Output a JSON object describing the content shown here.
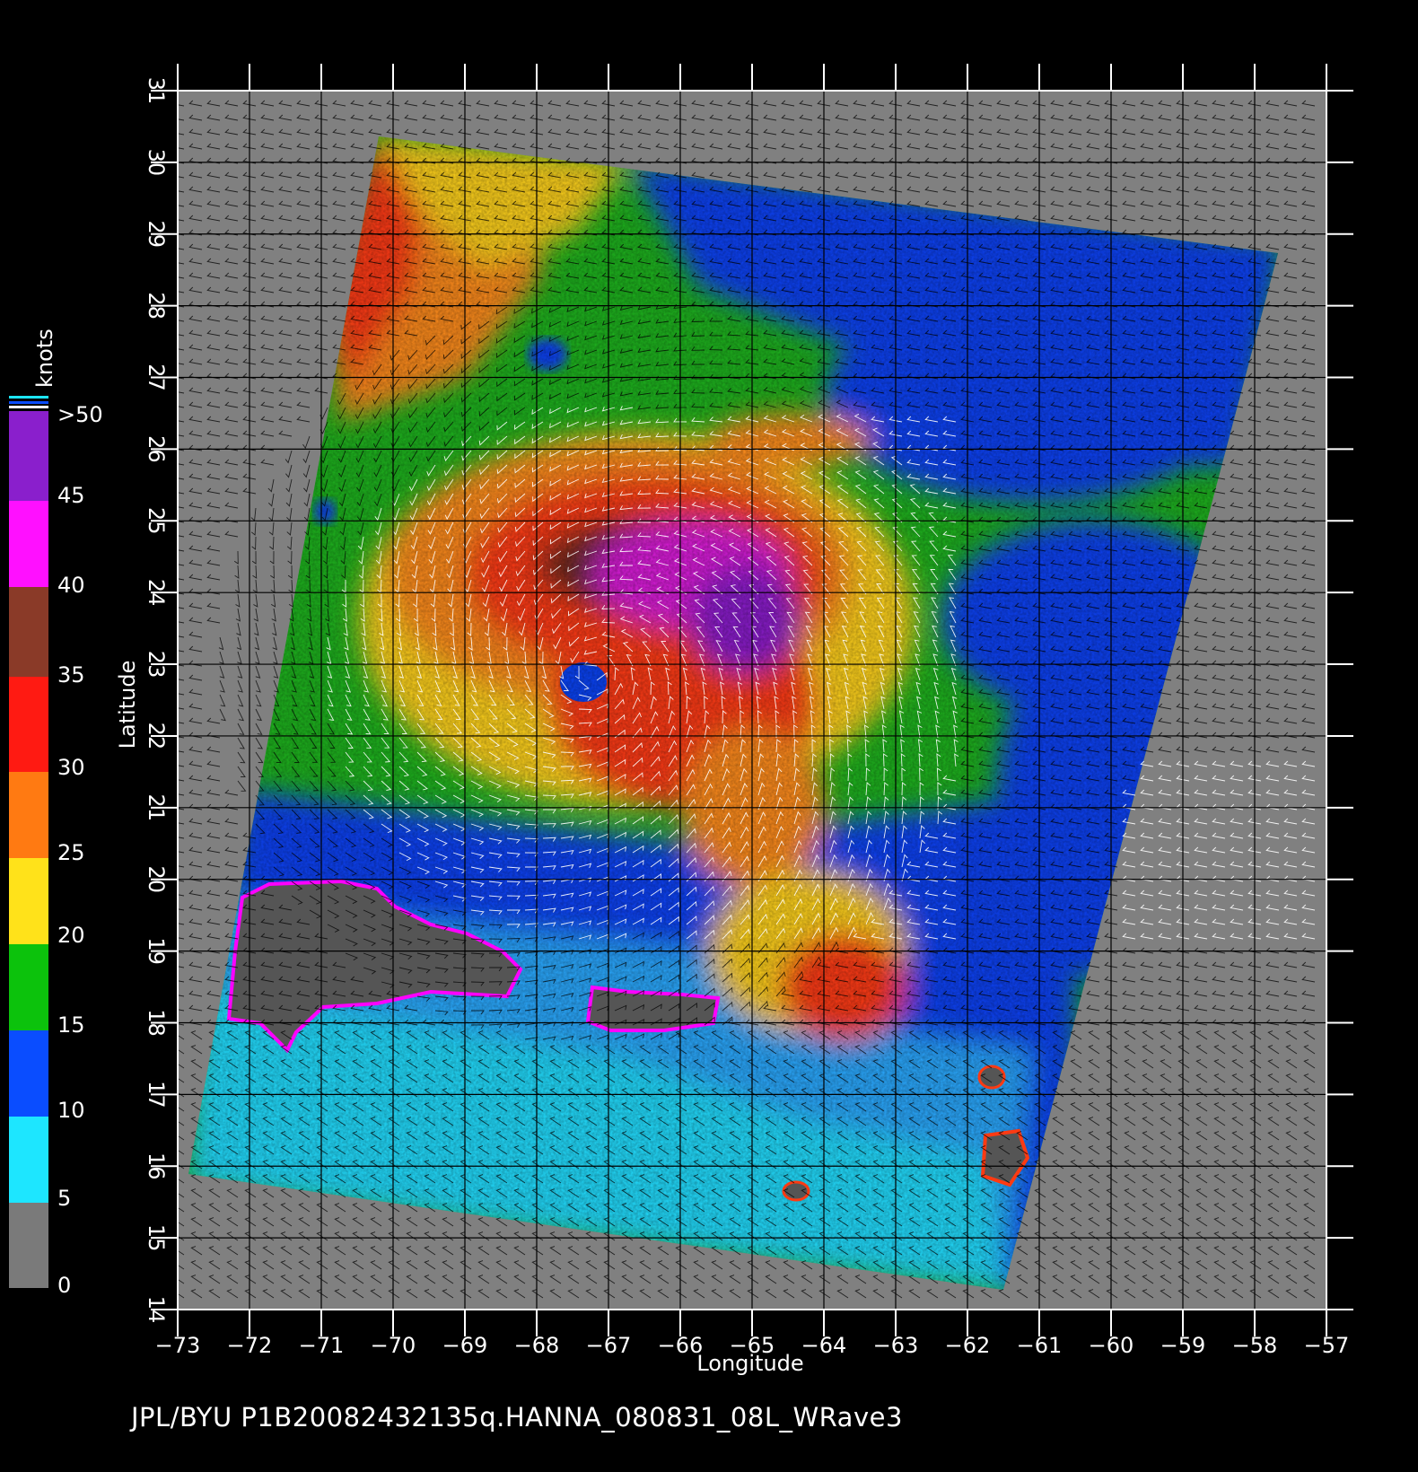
{
  "caption": "JPL/BYU  P1B20082432135q.HANNA_080831_08L_WRave3",
  "axes": {
    "x_title": "Longitude",
    "y_title": "Latitude",
    "x_ticks": [
      "−73",
      "−72",
      "−71",
      "−70",
      "−69",
      "−68",
      "−67",
      "−66",
      "−65",
      "−64",
      "−63",
      "−62",
      "−61",
      "−60",
      "−59",
      "−58",
      "−57"
    ],
    "y_ticks": [
      "14",
      "15",
      "16",
      "17",
      "18",
      "19",
      "20",
      "21",
      "22",
      "23",
      "24",
      "25",
      "26",
      "27",
      "28",
      "29",
      "30",
      "31"
    ],
    "lon_range": [
      -73,
      -57
    ],
    "lat_range": [
      14,
      31
    ],
    "grid": true
  },
  "colorbar": {
    "unit_label": "knots",
    "labels": [
      "0",
      "5",
      "10",
      "15",
      "20",
      "25",
      "30",
      "35",
      "40",
      "45",
      ">50"
    ],
    "colors": [
      "#7a7a7a",
      "#1de6ff",
      "#0a4dff",
      "#0cc20c",
      "#ffe21a",
      "#ff5a12",
      "#b86a4a",
      "#ff00ff",
      "#8a1fcc"
    ]
  },
  "legend_colors": {
    "gray": "#808080",
    "land": "#555555",
    "cyan": "#22ddff",
    "lightblue": "#29a9ff",
    "blue": "#0a43f5",
    "green": "#1eb41e",
    "yellow": "#ffd21a",
    "orange": "#ff8c1a",
    "red": "#ff3a12",
    "brown": "#6e2a1c",
    "magenta": "#d91cd9",
    "purple": "#8a1fcc"
  },
  "storm": {
    "name": "HANNA",
    "center_lon": -67.2,
    "center_lat": 22.9
  }
}
